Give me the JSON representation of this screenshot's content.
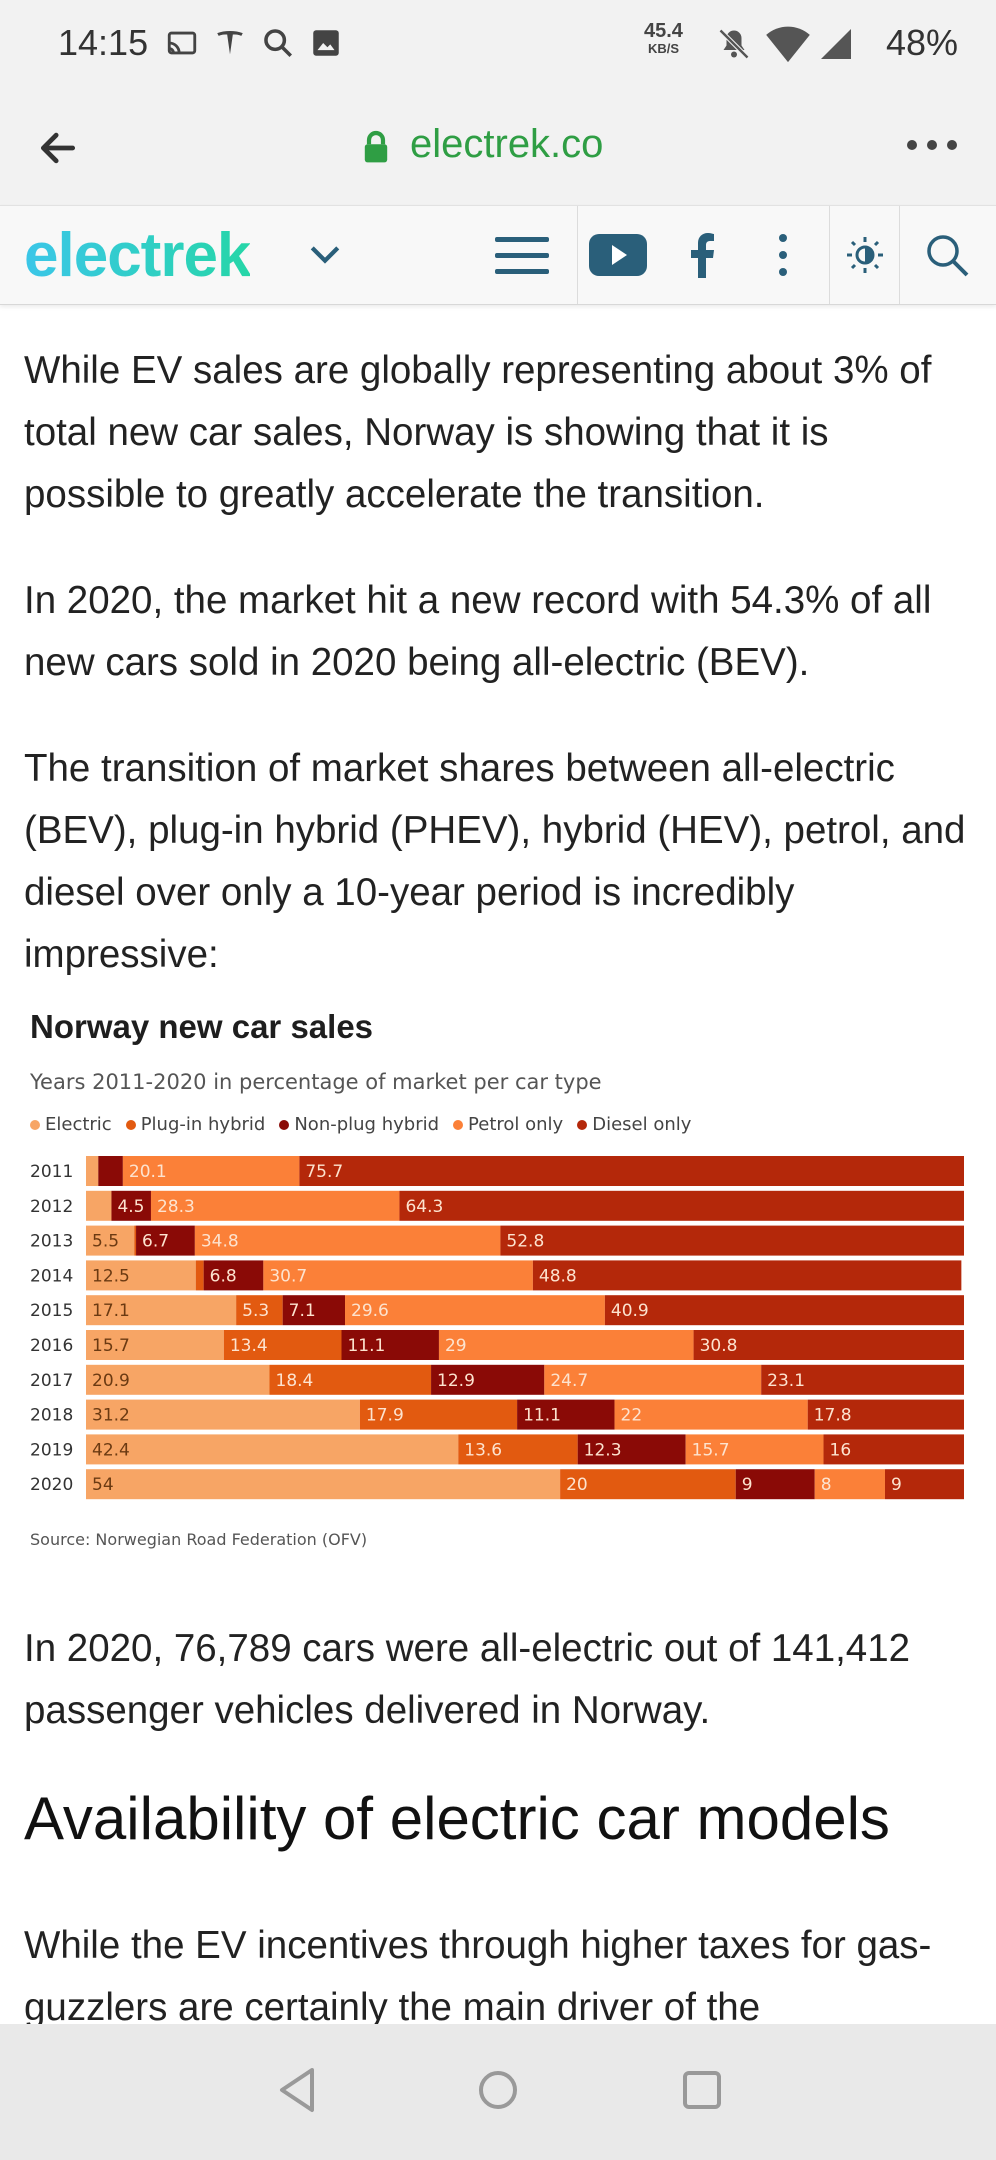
{
  "status_bar": {
    "time": "14:15",
    "net_speed": "45.4",
    "net_unit": "KB/S",
    "battery": "48%",
    "left_icons": [
      "cast-icon",
      "tesla-icon",
      "search-icon",
      "image-icon"
    ],
    "right_icons": [
      "mute-icon",
      "wifi-icon",
      "signal-icon"
    ]
  },
  "url_bar": {
    "domain": "electrek.co"
  },
  "site_header": {
    "logo": "electrek",
    "accent": "#2f9e44"
  },
  "article": {
    "paragraphs": [
      "While EV sales are globally representing about 3% of total new car sales, Norway is showing that it is possible to greatly accelerate the transition.",
      "In 2020, the market hit a new record with 54.3% of all new cars sold in 2020 being all-electric (BEV).",
      "The transition of market shares between all-electric (BEV), plug-in hybrid (PHEV), hybrid (HEV), petrol, and diesel over only a 10-year period is incredibly impressive:"
    ],
    "after_chart": "In 2020, 76,789 cars were all-electric out of 141,412 passenger vehicles delivered in Norway.",
    "heading": "Availability of electric car models",
    "last_paragraph": "While the EV incentives through higher taxes for gas-guzzlers are certainly the main driver of the"
  },
  "chart_data": {
    "type": "bar",
    "orientation": "horizontal",
    "stacked": true,
    "title": "Norway new car sales",
    "subtitle": "Years 2011-2020 in percentage of market per car type",
    "source": "Source: Norwegian Road Federation (OFV)",
    "categories": [
      "2011",
      "2012",
      "2013",
      "2014",
      "2015",
      "2016",
      "2017",
      "2018",
      "2019",
      "2020"
    ],
    "legend_position": "top-left",
    "series": [
      {
        "name": "Electric",
        "color": "#f7a565",
        "values": [
          1.4,
          2.9,
          5.5,
          12.5,
          17.1,
          15.7,
          20.9,
          31.2,
          42.4,
          54
        ],
        "labels": [
          "",
          "",
          "5.5",
          "12.5",
          "17.1",
          "15.7",
          "20.9",
          "31.2",
          "42.4",
          "54"
        ]
      },
      {
        "name": "Plug-in hybrid",
        "color": "#e25a10",
        "values": [
          0.0,
          0.0,
          0.2,
          0.9,
          5.3,
          13.4,
          18.4,
          17.9,
          13.6,
          20
        ],
        "labels": [
          "",
          "",
          "",
          "",
          "5.3",
          "13.4",
          "18.4",
          "17.9",
          "13.6",
          "20"
        ]
      },
      {
        "name": "Non-plug hybrid",
        "color": "#8a0a06",
        "values": [
          2.8,
          4.5,
          6.7,
          6.8,
          7.1,
          11.1,
          12.9,
          11.1,
          12.3,
          9
        ],
        "labels": [
          "",
          "4.5",
          "6.7",
          "6.8",
          "7.1",
          "11.1",
          "12.9",
          "11.1",
          "12.3",
          "9"
        ]
      },
      {
        "name": "Petrol only",
        "color": "#fb8038",
        "values": [
          20.1,
          28.3,
          34.8,
          30.7,
          29.6,
          29,
          24.7,
          22,
          15.7,
          8
        ],
        "labels": [
          "20.1",
          "28.3",
          "34.8",
          "30.7",
          "29.6",
          "29",
          "24.7",
          "22",
          "15.7",
          "8"
        ]
      },
      {
        "name": "Diesel only",
        "color": "#b4280a",
        "values": [
          75.7,
          64.3,
          52.8,
          48.8,
          40.9,
          30.8,
          23.1,
          17.8,
          16,
          9
        ],
        "labels": [
          "75.7",
          "64.3",
          "52.8",
          "48.8",
          "40.9",
          "30.8",
          "23.1",
          "17.8",
          "16",
          "9"
        ]
      }
    ],
    "xlim": [
      0,
      100
    ]
  }
}
